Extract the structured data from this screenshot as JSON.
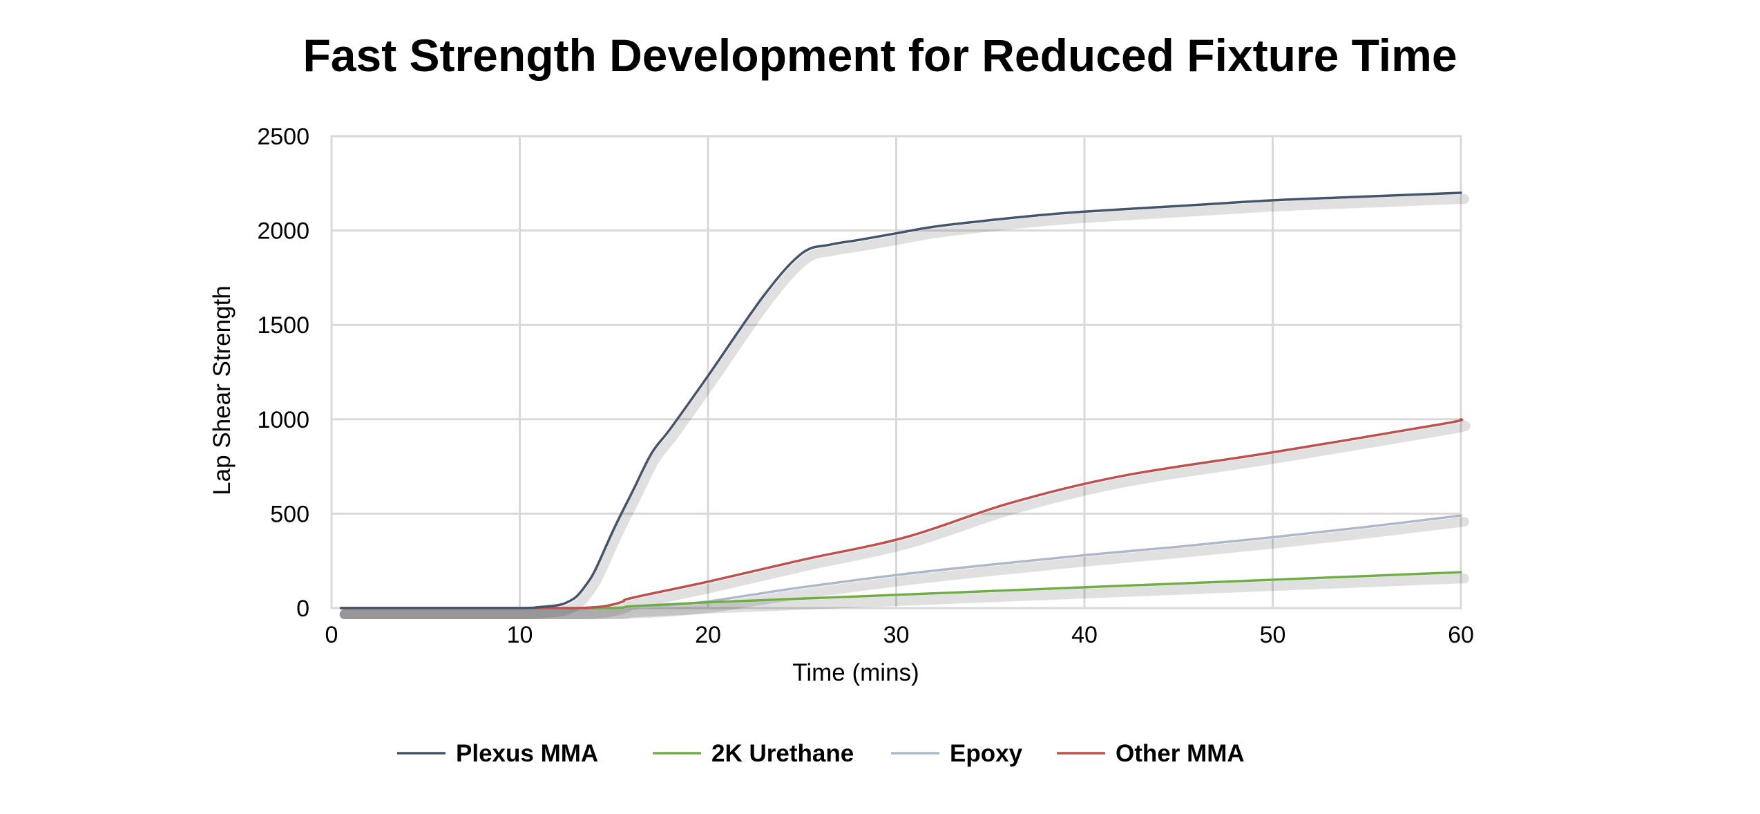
{
  "chart_data": {
    "type": "line",
    "title": "Fast Strength Development for Reduced Fixture Time",
    "xlabel": "Time (mins)",
    "ylabel": "Lap Shear Strength",
    "xlim": [
      0,
      60
    ],
    "ylim": [
      0,
      2500
    ],
    "xticks": [
      0,
      10,
      20,
      30,
      40,
      50,
      60
    ],
    "yticks": [
      0,
      500,
      1000,
      1500,
      2000,
      2500
    ],
    "grid": true,
    "legend_position": "bottom",
    "series": [
      {
        "name": "Plexus MMA",
        "color": "#44546a",
        "x": [
          0.5,
          5,
          10,
          11,
          12,
          12.5,
          13,
          13.5,
          14,
          15,
          16,
          17,
          18,
          20,
          23,
          25,
          26.5,
          28,
          30,
          32,
          35,
          37.5,
          40,
          45,
          50,
          55,
          60
        ],
        "y": [
          0,
          0,
          0,
          5,
          15,
          30,
          60,
          120,
          200,
          420,
          620,
          820,
          950,
          1230,
          1660,
          1880,
          1925,
          1950,
          1985,
          2020,
          2055,
          2080,
          2100,
          2130,
          2160,
          2180,
          2200
        ]
      },
      {
        "name": "2K Urethane",
        "color": "#70ad47",
        "x": [
          0.5,
          5,
          10,
          15,
          16,
          20,
          25,
          30,
          35,
          40,
          45,
          50,
          55,
          60
        ],
        "y": [
          0,
          0,
          0,
          0,
          10,
          30,
          50,
          70,
          90,
          110,
          130,
          150,
          170,
          190
        ]
      },
      {
        "name": "Epoxy",
        "color": "#adb9ca",
        "x": [
          0.5,
          5,
          10,
          14,
          16,
          18,
          20,
          22,
          25,
          30,
          35,
          40,
          45,
          50,
          55,
          60
        ],
        "y": [
          0,
          0,
          0,
          0,
          5,
          15,
          35,
          65,
          110,
          175,
          230,
          280,
          325,
          375,
          430,
          490
        ]
      },
      {
        "name": "Other  MMA",
        "color": "#c0504d",
        "x": [
          0.5,
          5,
          10,
          13,
          14,
          14.5,
          15,
          15.5,
          16,
          20,
          25,
          30.5,
          36,
          42,
          50,
          59,
          60
        ],
        "y": [
          0,
          0,
          0,
          0,
          5,
          10,
          20,
          35,
          55,
          140,
          255,
          375,
          555,
          700,
          825,
          975,
          1000
        ]
      }
    ]
  }
}
